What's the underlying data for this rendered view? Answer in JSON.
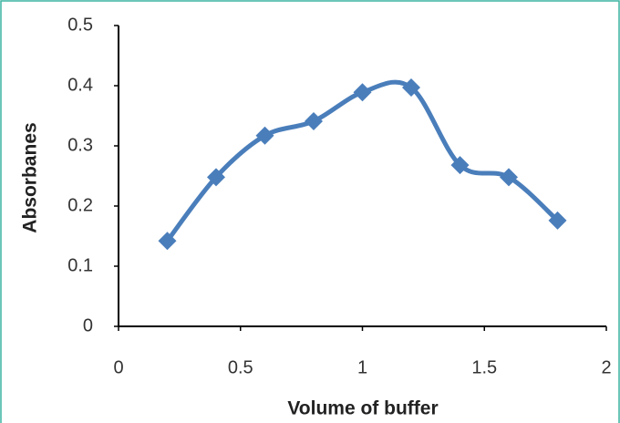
{
  "chart_data": {
    "type": "line",
    "x_label": "Volume of buffer",
    "y_label": "Absorbanes",
    "x": [
      0.2,
      0.4,
      0.6,
      0.8,
      1.0,
      1.2,
      1.4,
      1.6,
      1.8
    ],
    "series": [
      {
        "color": "#4a7ebb",
        "values": [
          0.142,
          0.248,
          0.317,
          0.341,
          0.389,
          0.397,
          0.268,
          0.248,
          0.176
        ]
      }
    ],
    "xlim": [
      0,
      2
    ],
    "xticks": [
      0,
      0.5,
      1,
      1.5,
      2
    ],
    "ylim": [
      0,
      0.5
    ],
    "yticks": [
      0,
      0.1,
      0.2,
      0.3,
      0.4,
      0.5
    ],
    "smooth": true,
    "grid": false
  }
}
